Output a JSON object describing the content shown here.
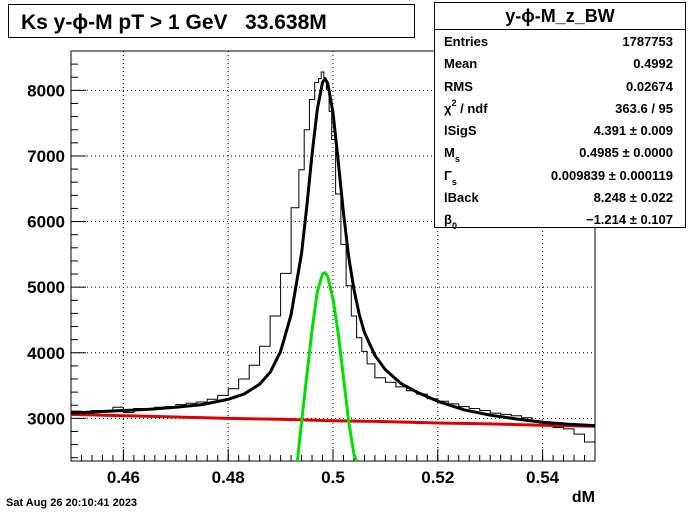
{
  "title": "Ks y-ϕ-M pT > 1 GeV   33.638M",
  "timestamp": "Sat Aug 26 20:10:41 2023",
  "stats": {
    "name": "y-ϕ-M_z_BW",
    "rows": [
      {
        "label": "Entries",
        "value": "1787753"
      },
      {
        "label": "Mean",
        "value": "0.4992"
      },
      {
        "label": "RMS",
        "value": "0.02674"
      },
      {
        "label": "χ / ndf",
        "value": "363.6 / 95"
      },
      {
        "label": "lSigS",
        "value": "4.391 ± 0.009"
      },
      {
        "label": "M",
        "value": "0.4985 ± 0.0000"
      },
      {
        "label": "Γ",
        "value": "0.009839 ± 0.000119"
      },
      {
        "label": "lBack",
        "value": "8.248 ± 0.022"
      },
      {
        "label": "β",
        "value": "−1.214 ± 0.107"
      }
    ]
  },
  "chart_data": {
    "type": "line",
    "title": "Ks y-ϕ-M pT > 1 GeV   33.638M",
    "xlabel": "dM",
    "ylabel": "",
    "xlim": [
      0.45,
      0.55
    ],
    "ylim": [
      2350,
      8600
    ],
    "grid": true,
    "xticks": [
      0.46,
      0.48,
      0.5,
      0.52,
      0.54
    ],
    "xtick_labels": [
      "0.46",
      "0.48",
      "0.5",
      "0.52",
      "0.54"
    ],
    "yticks": [
      3000,
      4000,
      5000,
      6000,
      7000,
      8000
    ],
    "ytick_labels": [
      "3000",
      "4000",
      "5000",
      "6000",
      "7000",
      "8000"
    ],
    "histogram": {
      "x": [
        0.451,
        0.453,
        0.455,
        0.457,
        0.459,
        0.461,
        0.463,
        0.465,
        0.467,
        0.469,
        0.471,
        0.473,
        0.475,
        0.477,
        0.479,
        0.481,
        0.483,
        0.485,
        0.487,
        0.489,
        0.491,
        0.493,
        0.494,
        0.495,
        0.496,
        0.497,
        0.4975,
        0.498,
        0.4985,
        0.499,
        0.4995,
        0.5,
        0.501,
        0.502,
        0.503,
        0.504,
        0.505,
        0.506,
        0.507,
        0.509,
        0.511,
        0.513,
        0.515,
        0.517,
        0.519,
        0.521,
        0.523,
        0.525,
        0.527,
        0.529,
        0.531,
        0.533,
        0.535,
        0.537,
        0.539,
        0.541,
        0.543,
        0.545,
        0.547,
        0.549
      ],
      "y": [
        3110,
        3090,
        3120,
        3100,
        3170,
        3090,
        3150,
        3130,
        3170,
        3180,
        3210,
        3230,
        3250,
        3290,
        3350,
        3450,
        3600,
        3810,
        4100,
        4560,
        5210,
        6210,
        6790,
        7400,
        7860,
        8120,
        8180,
        8280,
        8160,
        8010,
        7680,
        7250,
        6420,
        5650,
        5020,
        4560,
        4230,
        4020,
        3830,
        3620,
        3550,
        3480,
        3420,
        3370,
        3300,
        3260,
        3220,
        3180,
        3150,
        3120,
        3080,
        3060,
        3040,
        3010,
        2960,
        2920,
        2860,
        2840,
        2760,
        2640
      ]
    },
    "series": [
      {
        "name": "total fit",
        "color": "#000000",
        "x": [
          0.45,
          0.455,
          0.46,
          0.465,
          0.47,
          0.475,
          0.48,
          0.483,
          0.486,
          0.488,
          0.49,
          0.492,
          0.494,
          0.495,
          0.496,
          0.497,
          0.498,
          0.4985,
          0.499,
          0.5,
          0.501,
          0.502,
          0.503,
          0.504,
          0.505,
          0.506,
          0.508,
          0.51,
          0.513,
          0.516,
          0.52,
          0.525,
          0.53,
          0.535,
          0.54,
          0.545,
          0.55
        ],
        "y": [
          3080,
          3100,
          3120,
          3140,
          3170,
          3210,
          3290,
          3370,
          3520,
          3700,
          4020,
          4580,
          5520,
          6230,
          7020,
          7710,
          8120,
          8180,
          8100,
          7660,
          6920,
          6130,
          5460,
          4960,
          4590,
          4310,
          3960,
          3740,
          3530,
          3400,
          3260,
          3130,
          3050,
          2990,
          2940,
          2910,
          2890
        ]
      },
      {
        "name": "signal",
        "color": "#00e000",
        "x": [
          0.4932,
          0.494,
          0.495,
          0.496,
          0.497,
          0.498,
          0.4985,
          0.499,
          0.5,
          0.501,
          0.502,
          0.503,
          0.504,
          0.5045
        ],
        "y": [
          2350,
          2950,
          3650,
          4340,
          4930,
          5200,
          5220,
          5160,
          4820,
          4300,
          3620,
          2950,
          2450,
          2350
        ]
      },
      {
        "name": "background",
        "color": "#e00000",
        "x": [
          0.45,
          0.46,
          0.47,
          0.48,
          0.49,
          0.5,
          0.51,
          0.52,
          0.53,
          0.54,
          0.55
        ],
        "y": [
          3060,
          3040,
          3020,
          3000,
          2985,
          2965,
          2950,
          2930,
          2915,
          2895,
          2880
        ]
      }
    ]
  }
}
